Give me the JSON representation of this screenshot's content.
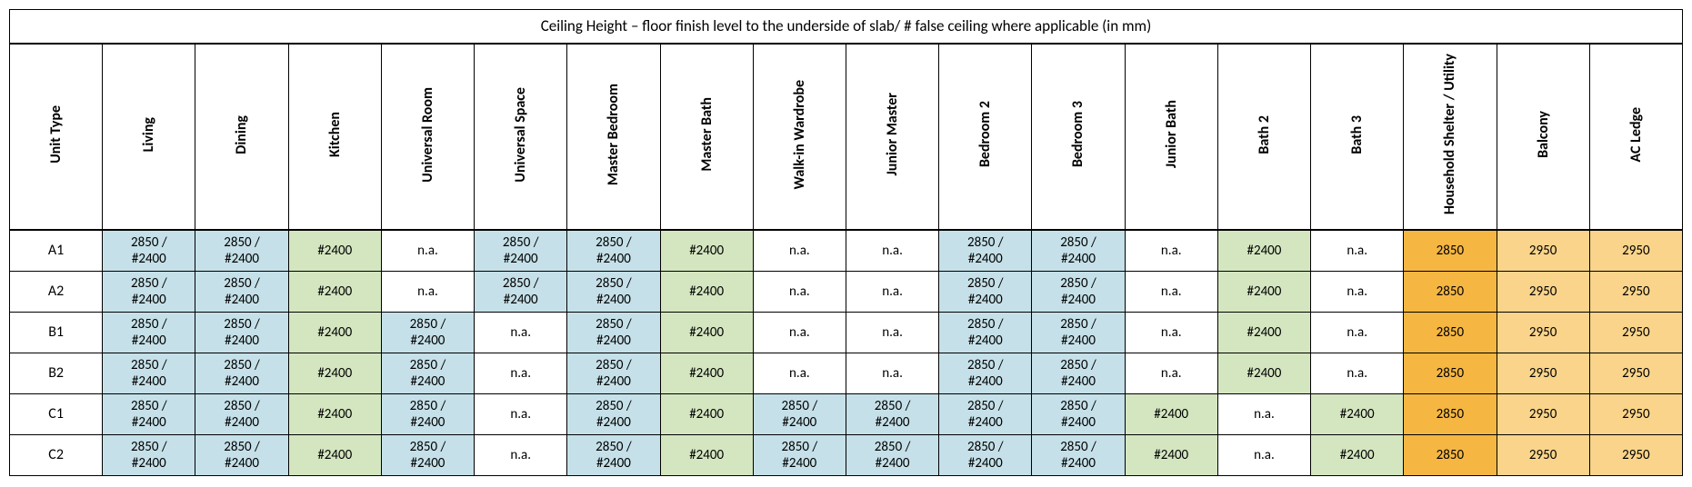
{
  "title": "Ceiling Height – floor finish level to the underside of slab/ # false ceiling where applicable (in mm)",
  "colors": {
    "blue": "#c5e0e8",
    "green": "#d4e6c0",
    "orange": "#f5b642",
    "light_orange": "#f9d48a",
    "border": "#000000",
    "text": "#000000"
  },
  "font": {
    "family": "Calibri, Arial, sans-serif",
    "title_size": 17,
    "header_size": 16,
    "cell_size": 15
  },
  "columns": [
    "Unit Type",
    "Living",
    "Dining",
    "Kitchen",
    "Universal Room",
    "Universal Space",
    "Master Bedroom",
    "Master Bath",
    "Walk-in Wardrobe",
    "Junior Master",
    "Bedroom 2",
    "Bedroom 3",
    "Junior Bath",
    "Bath 2",
    "Bath 3",
    "Household Shelter / Utility",
    "Balcony",
    "AC Ledge"
  ],
  "rows": [
    {
      "unit": "A1",
      "cells": [
        {
          "v": "2850 / #2400",
          "c": "blue"
        },
        {
          "v": "2850 / #2400",
          "c": "blue"
        },
        {
          "v": "#2400",
          "c": "green"
        },
        {
          "v": "n.a.",
          "c": ""
        },
        {
          "v": "2850 / #2400",
          "c": "blue"
        },
        {
          "v": "2850 / #2400",
          "c": "blue"
        },
        {
          "v": "#2400",
          "c": "green"
        },
        {
          "v": "n.a.",
          "c": ""
        },
        {
          "v": "n.a.",
          "c": ""
        },
        {
          "v": "2850 / #2400",
          "c": "blue"
        },
        {
          "v": "2850 / #2400",
          "c": "blue"
        },
        {
          "v": "n.a.",
          "c": ""
        },
        {
          "v": "#2400",
          "c": "green"
        },
        {
          "v": "n.a.",
          "c": ""
        },
        {
          "v": "2850",
          "c": "orange"
        },
        {
          "v": "2950",
          "c": "lorange"
        },
        {
          "v": "2950",
          "c": "lorange"
        }
      ]
    },
    {
      "unit": "A2",
      "cells": [
        {
          "v": "2850 / #2400",
          "c": "blue"
        },
        {
          "v": "2850 / #2400",
          "c": "blue"
        },
        {
          "v": "#2400",
          "c": "green"
        },
        {
          "v": "n.a.",
          "c": ""
        },
        {
          "v": "2850 / #2400",
          "c": "blue"
        },
        {
          "v": "2850 / #2400",
          "c": "blue"
        },
        {
          "v": "#2400",
          "c": "green"
        },
        {
          "v": "n.a.",
          "c": ""
        },
        {
          "v": "n.a.",
          "c": ""
        },
        {
          "v": "2850 / #2400",
          "c": "blue"
        },
        {
          "v": "2850 / #2400",
          "c": "blue"
        },
        {
          "v": "n.a.",
          "c": ""
        },
        {
          "v": "#2400",
          "c": "green"
        },
        {
          "v": "n.a.",
          "c": ""
        },
        {
          "v": "2850",
          "c": "orange"
        },
        {
          "v": "2950",
          "c": "lorange"
        },
        {
          "v": "2950",
          "c": "lorange"
        }
      ]
    },
    {
      "unit": "B1",
      "cells": [
        {
          "v": "2850 / #2400",
          "c": "blue"
        },
        {
          "v": "2850 / #2400",
          "c": "blue"
        },
        {
          "v": "#2400",
          "c": "green"
        },
        {
          "v": "2850 / #2400",
          "c": "blue"
        },
        {
          "v": "n.a.",
          "c": ""
        },
        {
          "v": "2850 / #2400",
          "c": "blue"
        },
        {
          "v": "#2400",
          "c": "green"
        },
        {
          "v": "n.a.",
          "c": ""
        },
        {
          "v": "n.a.",
          "c": ""
        },
        {
          "v": "2850 / #2400",
          "c": "blue"
        },
        {
          "v": "2850 / #2400",
          "c": "blue"
        },
        {
          "v": "n.a.",
          "c": ""
        },
        {
          "v": "#2400",
          "c": "green"
        },
        {
          "v": "n.a.",
          "c": ""
        },
        {
          "v": "2850",
          "c": "orange"
        },
        {
          "v": "2950",
          "c": "lorange"
        },
        {
          "v": "2950",
          "c": "lorange"
        }
      ]
    },
    {
      "unit": "B2",
      "cells": [
        {
          "v": "2850 / #2400",
          "c": "blue"
        },
        {
          "v": "2850 / #2400",
          "c": "blue"
        },
        {
          "v": "#2400",
          "c": "green"
        },
        {
          "v": "2850 / #2400",
          "c": "blue"
        },
        {
          "v": "n.a.",
          "c": ""
        },
        {
          "v": "2850 / #2400",
          "c": "blue"
        },
        {
          "v": "#2400",
          "c": "green"
        },
        {
          "v": "n.a.",
          "c": ""
        },
        {
          "v": "n.a.",
          "c": ""
        },
        {
          "v": "2850 / #2400",
          "c": "blue"
        },
        {
          "v": "2850 / #2400",
          "c": "blue"
        },
        {
          "v": "n.a.",
          "c": ""
        },
        {
          "v": "#2400",
          "c": "green"
        },
        {
          "v": "n.a.",
          "c": ""
        },
        {
          "v": "2850",
          "c": "orange"
        },
        {
          "v": "2950",
          "c": "lorange"
        },
        {
          "v": "2950",
          "c": "lorange"
        }
      ]
    },
    {
      "unit": "C1",
      "cells": [
        {
          "v": "2850 / #2400",
          "c": "blue"
        },
        {
          "v": "2850 / #2400",
          "c": "blue"
        },
        {
          "v": "#2400",
          "c": "green"
        },
        {
          "v": "2850 / #2400",
          "c": "blue"
        },
        {
          "v": "n.a.",
          "c": ""
        },
        {
          "v": "2850 / #2400",
          "c": "blue"
        },
        {
          "v": "#2400",
          "c": "green"
        },
        {
          "v": "2850 / #2400",
          "c": "blue"
        },
        {
          "v": "2850 / #2400",
          "c": "blue"
        },
        {
          "v": "2850 / #2400",
          "c": "blue"
        },
        {
          "v": "2850 / #2400",
          "c": "blue"
        },
        {
          "v": "#2400",
          "c": "green"
        },
        {
          "v": "n.a.",
          "c": ""
        },
        {
          "v": "#2400",
          "c": "green"
        },
        {
          "v": "2850",
          "c": "orange"
        },
        {
          "v": "2950",
          "c": "lorange"
        },
        {
          "v": "2950",
          "c": "lorange"
        }
      ]
    },
    {
      "unit": "C2",
      "cells": [
        {
          "v": "2850 / #2400",
          "c": "blue"
        },
        {
          "v": "2850 / #2400",
          "c": "blue"
        },
        {
          "v": "#2400",
          "c": "green"
        },
        {
          "v": "2850 / #2400",
          "c": "blue"
        },
        {
          "v": "n.a.",
          "c": ""
        },
        {
          "v": "2850 / #2400",
          "c": "blue"
        },
        {
          "v": "#2400",
          "c": "green"
        },
        {
          "v": "2850 / #2400",
          "c": "blue"
        },
        {
          "v": "2850 / #2400",
          "c": "blue"
        },
        {
          "v": "2850 / #2400",
          "c": "blue"
        },
        {
          "v": "2850 / #2400",
          "c": "blue"
        },
        {
          "v": "#2400",
          "c": "green"
        },
        {
          "v": "n.a.",
          "c": ""
        },
        {
          "v": "#2400",
          "c": "green"
        },
        {
          "v": "2850",
          "c": "orange"
        },
        {
          "v": "2950",
          "c": "lorange"
        },
        {
          "v": "2950",
          "c": "lorange"
        }
      ]
    }
  ]
}
